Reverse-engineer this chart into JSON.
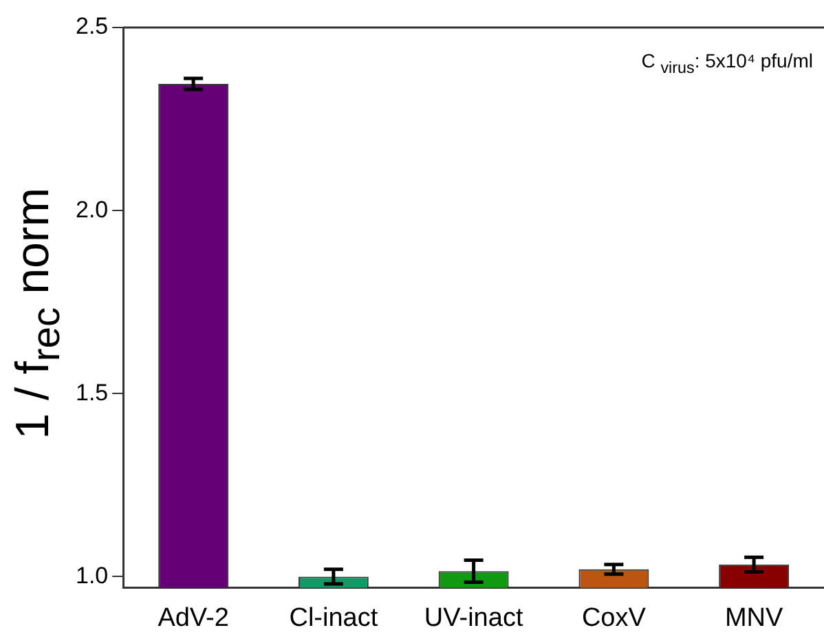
{
  "chart_data": {
    "type": "bar",
    "ylabel": "1 / f$_{rec}$ norm",
    "annotations": [
      "C $_{virus}$: 5x10⁴ pfu/ml"
    ],
    "categories": [
      "AdV-2",
      "Cl-inact",
      "UV-inact",
      "CoxV",
      "MNV"
    ],
    "values": [
      2.346,
      1.0,
      1.015,
      1.02,
      1.033
    ],
    "errors": [
      0.015,
      0.02,
      0.03,
      0.013,
      0.02
    ],
    "colors": [
      "#660077",
      "#119966",
      "#119911",
      "#bb5511",
      "#880000"
    ],
    "ylim": [
      0.97,
      2.5
    ],
    "yticks": [
      {
        "value": 1.0,
        "label": "1.0"
      },
      {
        "value": 1.5,
        "label": "1.5"
      },
      {
        "value": 2.0,
        "label": "2.0"
      },
      {
        "value": 2.5,
        "label": "2.5"
      }
    ],
    "grid": false,
    "legend": false
  }
}
